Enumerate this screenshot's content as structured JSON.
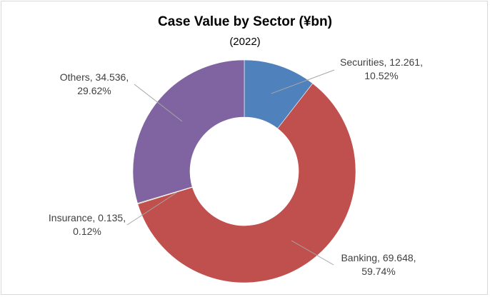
{
  "chart_data": {
    "type": "pie",
    "title": "Case Value by Sector (¥bn)",
    "subtitle": "(2022)",
    "slices": [
      {
        "label": "Securities",
        "value": 12.261,
        "percent": "10.52%",
        "color": "#4f81bd",
        "value_text": "12.261"
      },
      {
        "label": "Banking",
        "value": 69.648,
        "percent": "59.74%",
        "color": "#c0504d",
        "value_text": "69.648"
      },
      {
        "label": "Insurance",
        "value": 0.135,
        "percent": "0.12%",
        "color": "#9bbb59",
        "value_text": "0.135"
      },
      {
        "label": "Others",
        "value": 34.536,
        "percent": "29.62%",
        "color": "#8064a2",
        "value_text": "34.536"
      }
    ]
  }
}
